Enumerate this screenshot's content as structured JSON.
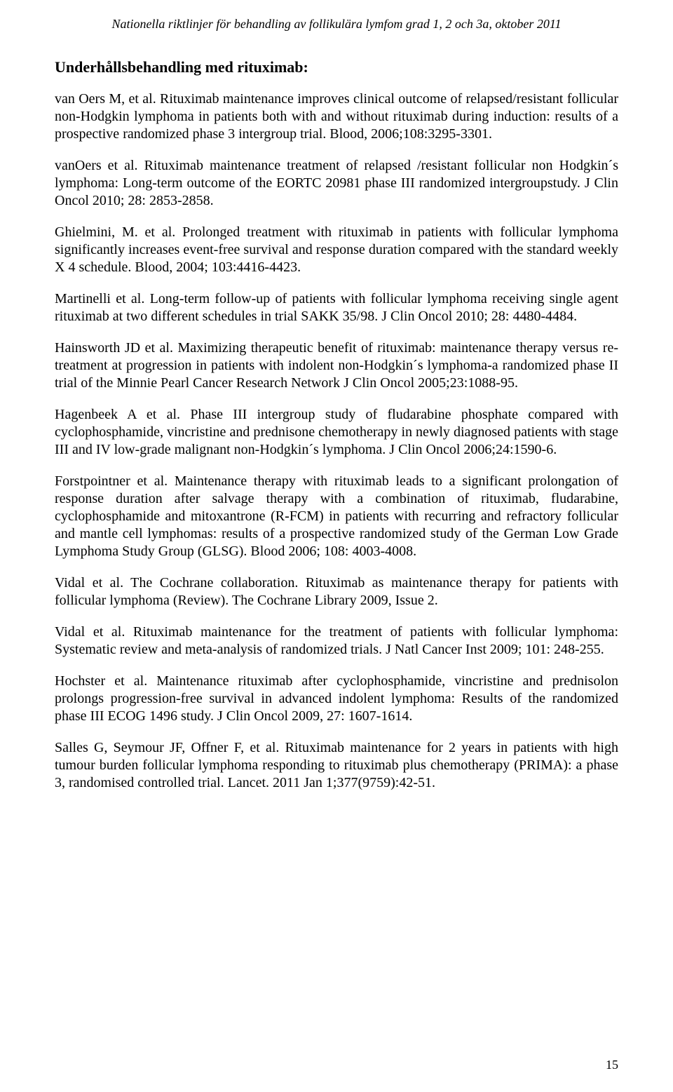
{
  "header": "Nationella riktlinjer för behandling av follikulära lymfom grad 1, 2 och 3a, oktober 2011",
  "sectionTitle": "Underhållsbehandling med rituximab:",
  "refs": [
    "van Oers M, et al. Rituximab maintenance improves clinical outcome of relapsed/resistant follicular non-Hodgkin lymphoma in patients both with and without rituximab during induction: results of a prospective randomized phase 3 intergroup trial. Blood, 2006;108:3295-3301.",
    "vanOers et al. Rituximab maintenance treatment of relapsed /resistant follicular non Hodgkin´s lymphoma: Long-term outcome of the EORTC 20981 phase III randomized intergroupstudy. J Clin Oncol 2010; 28: 2853-2858.",
    "Ghielmini, M. et al. Prolonged treatment with rituximab in patients with follicular lymphoma significantly increases event-free survival and response duration compared with the standard weekly X 4 schedule. Blood, 2004; 103:4416-4423.",
    "Martinelli et al. Long-term follow-up of patients with follicular lymphoma receiving single agent rituximab at two different schedules in trial SAKK 35/98. J Clin Oncol 2010; 28: 4480-4484.",
    "Hainsworth JD et al. Maximizing therapeutic benefit of rituximab: maintenance therapy versus re-treatment at progression in patients with indolent non-Hodgkin´s lymphoma-a randomized phase II trial of the Minnie Pearl Cancer Research Network J Clin Oncol 2005;23:1088-95.",
    "Hagenbeek A et al. Phase III intergroup study of fludarabine phosphate compared with cyclophosphamide, vincristine and prednisone chemotherapy in newly diagnosed patients with stage III and IV low-grade malignant non-Hodgkin´s lymphoma. J Clin Oncol 2006;24:1590-6.",
    "Forstpointner et al. Maintenance therapy with rituximab leads to a significant prolongation of response duration after salvage therapy with a combination of rituximab, fludarabine, cyclophosphamide and mitoxantrone (R-FCM) in patients with recurring and refractory follicular and mantle cell lymphomas: results of a prospective randomized study of the German Low Grade Lymphoma Study Group (GLSG). Blood 2006; 108: 4003-4008.",
    "Vidal et al. The Cochrane collaboration. Rituximab as maintenance therapy for patients with follicular lymphoma (Review). The Cochrane Library 2009, Issue 2.",
    "Vidal et al. Rituximab maintenance for the treatment of patients with follicular lymphoma: Systematic review and meta-analysis of randomized trials. J Natl Cancer Inst 2009; 101: 248-255.",
    "Hochster et al. Maintenance rituximab after cyclophosphamide, vincristine and prednisolon prolongs progression-free survival in advanced indolent lymphoma: Results of the randomized phase III ECOG 1496 study. J Clin Oncol 2009, 27: 1607-1614.",
    "Salles G, Seymour JF, Offner F, et al. Rituximab maintenance for 2 years in patients with high tumour burden follicular lymphoma responding to rituximab plus chemotherapy (PRIMA): a phase 3, randomised controlled trial. Lancet. 2011 Jan 1;377(9759):42-51."
  ],
  "pageNumber": "15"
}
